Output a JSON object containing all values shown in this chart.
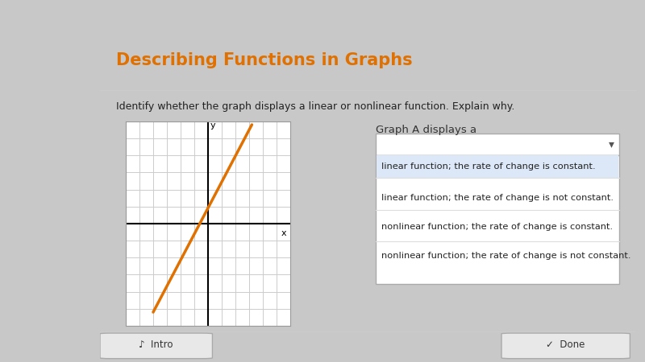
{
  "title": "Describing Functions in Graphs",
  "title_color": "#e07000",
  "instruction": "Identify whether the graph displays a linear or nonlinear function. Explain why.",
  "graph_label": "Graph A",
  "dropdown_label": "Graph A displays a",
  "dropdown_options": [
    "",
    "linear function; the rate of change is constant.",
    "linear function; the rate of change is not constant.",
    "nonlinear function; the rate of change is constant.",
    "nonlinear function; the rate of change is not constant."
  ],
  "line_color": "#e07000",
  "grid_color": "#cccccc",
  "axis_color": "#000000",
  "outer_bg": "#c8c8c8",
  "panel_bg": "#ffffff",
  "dropdown_bg": "#dce8f8",
  "dropdown_border": "#aaaaaa",
  "sidebar_bg": "#3a3a3a",
  "topbar_bg": "#2a2a2a",
  "button_intro_text": "Intro",
  "button_done_text": "Done"
}
